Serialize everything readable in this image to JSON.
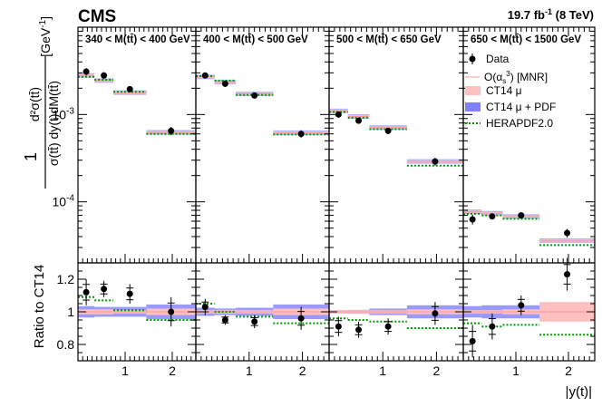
{
  "header": {
    "experiment": "CMS",
    "lumi": "19.7 fb",
    "lumi_exp": "-1",
    "energy": " (8 TeV)"
  },
  "y_axis_main": {
    "frac": "1",
    "num": "d²σ(tt̄)",
    "den": "σ(tt̄) dy(t)dM(tt̄)",
    "unit": "[GeV",
    "unit_exp": "-1",
    "unit_end": "]"
  },
  "y_axis_ratio": "Ratio to CT14",
  "x_axis_label": "|y(t)|",
  "main_ticks": [
    {
      "v": 0.001,
      "base": "10",
      "exp": "-3"
    },
    {
      "v": 0.0001,
      "base": "10",
      "exp": "-4"
    }
  ],
  "ratio_ticks": [
    "1.2",
    "1",
    "0.8"
  ],
  "x_ticks": [
    "1",
    "2"
  ],
  "legend": {
    "data": "Data",
    "mnr": "O(α",
    "mnr_sub": "s",
    "mnr_sup": "3",
    "mnr_end": ") [MNR]",
    "ct14": "CT14 μ",
    "ct14pdf": "CT14 μ + PDF",
    "hera": "HERAPDF2.0"
  },
  "colors": {
    "data": "#000000",
    "ct14_scale": "#ffc0c0",
    "ct14_pdf": "#8080ff",
    "herapdf": "#009900",
    "mnr": "#ff9999"
  },
  "chart_data": {
    "type": "scatter",
    "x_label": "|y(t)|",
    "y_scale_main": "log",
    "y_range_main": [
      2e-05,
      0.01
    ],
    "y_range_ratio": [
      0.7,
      1.3
    ],
    "x_range": [
      0,
      2.5
    ],
    "bin_edges": [
      0,
      0.35,
      0.75,
      1.45,
      2.5
    ],
    "panels": [
      {
        "label": "340 < M(tt̄) < 400 GeV",
        "data": [
          0.0031,
          0.0028,
          0.00195,
          0.00065
        ],
        "data_err": [
          0.0003,
          0.00025,
          0.00015,
          7e-05
        ],
        "ct14": [
          0.0028,
          0.00245,
          0.00178,
          0.000625
        ],
        "herapdf": [
          0.0027,
          0.0025,
          0.00182,
          0.0006
        ],
        "ratio": [
          1.12,
          1.14,
          1.11,
          1.0
        ],
        "ratio_err": [
          0.08,
          0.05,
          0.06,
          0.09
        ],
        "ratio_hera": [
          1.09,
          1.07,
          1.01,
          0.95
        ],
        "pdf_band": [
          0.035,
          0.03,
          0.03,
          0.045
        ],
        "scale_band": [
          0.015,
          0.015,
          0.01,
          0.02
        ]
      },
      {
        "label": "400 < M(tt̄) < 500 GeV",
        "data": [
          0.0028,
          0.00225,
          0.00165,
          0.0006
        ],
        "data_err": [
          0.0002,
          0.00018,
          0.00012,
          6e-05
        ],
        "ct14": [
          0.0027,
          0.00235,
          0.00172,
          0.00062
        ],
        "herapdf": [
          0.00275,
          0.00245,
          0.00168,
          0.00059
        ],
        "ratio": [
          1.03,
          0.95,
          0.94,
          0.96
        ],
        "ratio_err": [
          0.05,
          0.03,
          0.04,
          0.07
        ],
        "ratio_hera": [
          1.05,
          1.0,
          0.97,
          0.93
        ],
        "pdf_band": [
          0.025,
          0.02,
          0.025,
          0.045
        ],
        "scale_band": [
          0.01,
          0.01,
          0.01,
          0.02
        ]
      },
      {
        "label": "500 < M(tt̄) < 650 GeV",
        "data": [
          0.001,
          0.00085,
          0.00065,
          0.00029
        ],
        "data_err": [
          8e-05,
          6e-05,
          5e-05,
          3e-05
        ],
        "ct14": [
          0.0011,
          0.00095,
          0.00071,
          0.00029
        ],
        "herapdf": [
          0.00107,
          0.00092,
          0.00068,
          0.00026
        ],
        "ratio": [
          0.91,
          0.89,
          0.91,
          0.99
        ],
        "ratio_err": [
          0.06,
          0.05,
          0.05,
          0.07
        ],
        "ratio_hera": [
          0.96,
          0.95,
          0.94,
          0.9
        ],
        "pdf_band": [
          0.01,
          0.012,
          0.02,
          0.04
        ],
        "scale_band": [
          0.01,
          0.01,
          0.01,
          0.015
        ]
      },
      {
        "label": "650 < M(tt̄) < 1500 GeV",
        "data": [
          6.3e-05,
          6.8e-05,
          7e-05,
          4.4e-05
        ],
        "data_err": [
          8e-06,
          5e-06,
          5e-06,
          5e-06
        ],
        "ct14": [
          7.7e-05,
          7.4e-05,
          6.8e-05,
          3.6e-05
        ],
        "herapdf": [
          7.3e-05,
          7e-05,
          6.4e-05,
          3.2e-05
        ],
        "ratio": [
          0.82,
          0.91,
          1.04,
          1.23
        ],
        "ratio_err": [
          0.1,
          0.08,
          0.06,
          0.1
        ],
        "ratio_hera": [
          0.93,
          0.91,
          0.92,
          0.86
        ],
        "pdf_band": [
          0.035,
          0.04,
          0.04,
          0.05
        ],
        "scale_band": [
          0.01,
          0.01,
          0.015,
          0.06
        ]
      }
    ]
  }
}
